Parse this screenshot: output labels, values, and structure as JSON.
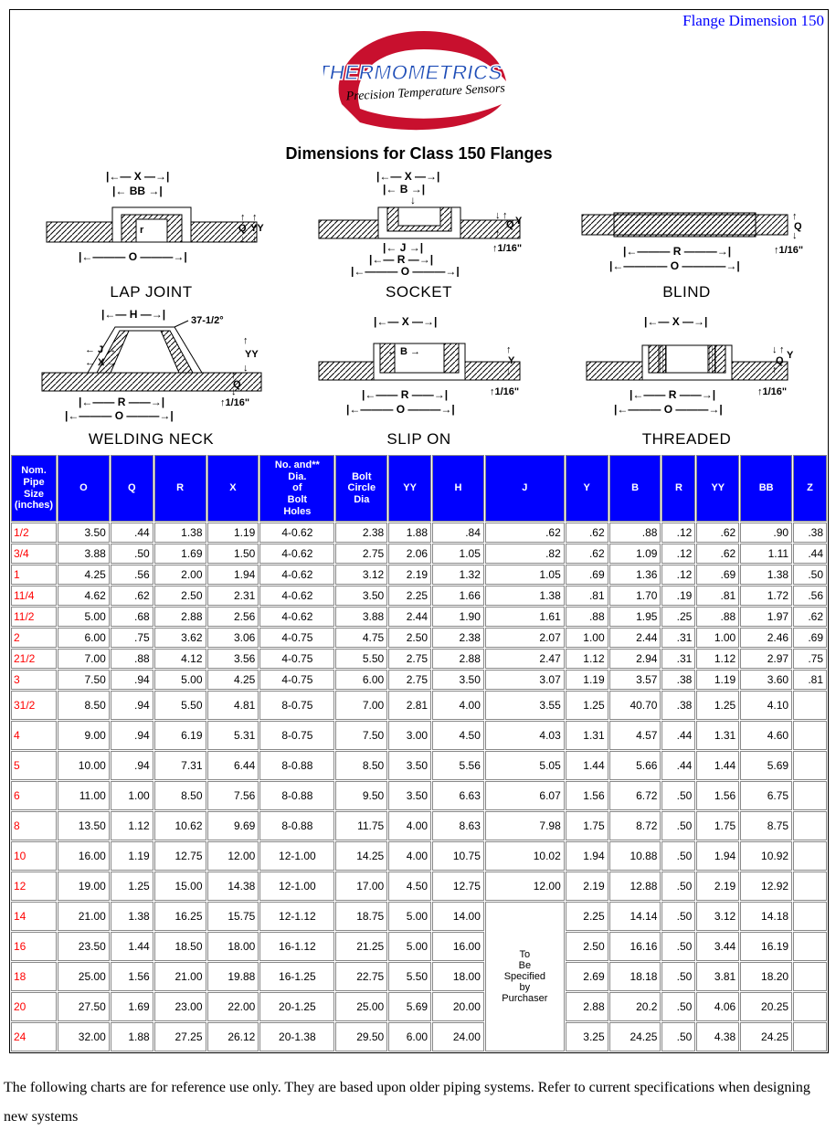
{
  "corner_label": "Flange Dimension 150",
  "logo": {
    "brand_main": "THERMOMETRICS",
    "brand_sub": "Precision Temperature Sensors",
    "swoosh_color": "#c8102e",
    "text_fill": "#1e4db7",
    "text_stroke": "#ffffff"
  },
  "title": "Dimensions for Class 150 Flanges",
  "diagrams": {
    "row1": [
      "LAP JOINT",
      "SOCKET",
      "BLIND"
    ],
    "row2": [
      "WELDING NECK",
      "SLIP ON",
      "THREADED"
    ],
    "diagram_colors": {
      "outline": "#000000",
      "hatch": "#000000",
      "dim_text": "#000000"
    },
    "angle_label": "37-1/2°",
    "frac_label": "1/16\""
  },
  "table": {
    "header_bg": "#0000ff",
    "header_fg": "#ffffff",
    "size_color": "#ff0000",
    "columns": [
      "Nom. Pipe Size (inches)",
      "O",
      "Q",
      "R",
      "X",
      "No. and** Dia. of Bolt Holes",
      "Bolt Circle Dia",
      "YY",
      "H",
      "J",
      "Y",
      "B",
      "R",
      "YY",
      "BB",
      "Z"
    ],
    "rows": [
      {
        "size": "1/2",
        "cells": [
          "3.50",
          ".44",
          "1.38",
          "1.19",
          "4-0.62",
          "2.38",
          "1.88",
          ".84",
          ".62",
          ".62",
          ".88",
          ".12",
          ".62",
          ".90",
          ".38"
        ]
      },
      {
        "size": "3/4",
        "cells": [
          "3.88",
          ".50",
          "1.69",
          "1.50",
          "4-0.62",
          "2.75",
          "2.06",
          "1.05",
          ".82",
          ".62",
          "1.09",
          ".12",
          ".62",
          "1.11",
          ".44"
        ]
      },
      {
        "size": "1",
        "cells": [
          "4.25",
          ".56",
          "2.00",
          "1.94",
          "4-0.62",
          "3.12",
          "2.19",
          "1.32",
          "1.05",
          ".69",
          "1.36",
          ".12",
          ".69",
          "1.38",
          ".50"
        ]
      },
      {
        "size": "11/4",
        "cells": [
          "4.62",
          ".62",
          "2.50",
          "2.31",
          "4-0.62",
          "3.50",
          "2.25",
          "1.66",
          "1.38",
          ".81",
          "1.70",
          ".19",
          ".81",
          "1.72",
          ".56"
        ]
      },
      {
        "size": "11/2",
        "cells": [
          "5.00",
          ".68",
          "2.88",
          "2.56",
          "4-0.62",
          "3.88",
          "2.44",
          "1.90",
          "1.61",
          ".88",
          "1.95",
          ".25",
          ".88",
          "1.97",
          ".62"
        ]
      },
      {
        "size": "2",
        "cells": [
          "6.00",
          ".75",
          "3.62",
          "3.06",
          "4-0.75",
          "4.75",
          "2.50",
          "2.38",
          "2.07",
          "1.00",
          "2.44",
          ".31",
          "1.00",
          "2.46",
          ".69"
        ]
      },
      {
        "size": "21/2",
        "cells": [
          "7.00",
          ".88",
          "4.12",
          "3.56",
          "4-0.75",
          "5.50",
          "2.75",
          "2.88",
          "2.47",
          "1.12",
          "2.94",
          ".31",
          "1.12",
          "2.97",
          ".75"
        ]
      },
      {
        "size": "3",
        "cells": [
          "7.50",
          ".94",
          "5.00",
          "4.25",
          "4-0.75",
          "6.00",
          "2.75",
          "3.50",
          "3.07",
          "1.19",
          "3.57",
          ".38",
          "1.19",
          "3.60",
          ".81"
        ]
      },
      {
        "size": "31/2",
        "tall": true,
        "cells": [
          "8.50",
          ".94",
          "5.50",
          "4.81",
          "8-0.75",
          "7.00",
          "2.81",
          "4.00",
          "3.55",
          "1.25",
          "40.70",
          ".38",
          "1.25",
          "4.10",
          ""
        ]
      },
      {
        "size": "4",
        "tall": true,
        "cells": [
          "9.00",
          ".94",
          "6.19",
          "5.31",
          "8-0.75",
          "7.50",
          "3.00",
          "4.50",
          "4.03",
          "1.31",
          "4.57",
          ".44",
          "1.31",
          "4.60",
          ""
        ]
      },
      {
        "size": "5",
        "tall": true,
        "cells": [
          "10.00",
          ".94",
          "7.31",
          "6.44",
          "8-0.88",
          "8.50",
          "3.50",
          "5.56",
          "5.05",
          "1.44",
          "5.66",
          ".44",
          "1.44",
          "5.69",
          ""
        ]
      },
      {
        "size": "6",
        "tall": true,
        "cells": [
          "11.00",
          "1.00",
          "8.50",
          "7.56",
          "8-0.88",
          "9.50",
          "3.50",
          "6.63",
          "6.07",
          "1.56",
          "6.72",
          ".50",
          "1.56",
          "6.75",
          ""
        ]
      },
      {
        "size": "8",
        "tall": true,
        "cells": [
          "13.50",
          "1.12",
          "10.62",
          "9.69",
          "8-0.88",
          "11.75",
          "4.00",
          "8.63",
          "7.98",
          "1.75",
          "8.72",
          ".50",
          "1.75",
          "8.75",
          ""
        ]
      },
      {
        "size": "10",
        "tall": true,
        "cells": [
          "16.00",
          "1.19",
          "12.75",
          "12.00",
          "12-1.00",
          "14.25",
          "4.00",
          "10.75",
          "10.02",
          "1.94",
          "10.88",
          ".50",
          "1.94",
          "10.92",
          ""
        ]
      },
      {
        "size": "12",
        "tall": true,
        "cells": [
          "19.00",
          "1.25",
          "15.00",
          "14.38",
          "12-1.00",
          "17.00",
          "4.50",
          "12.75",
          "12.00",
          "2.19",
          "12.88",
          ".50",
          "2.19",
          "12.92",
          ""
        ]
      },
      {
        "size": "14",
        "tall": true,
        "cells": [
          "21.00",
          "1.38",
          "16.25",
          "15.75",
          "12-1.12",
          "18.75",
          "5.00",
          "14.00",
          "",
          "2.25",
          "14.14",
          ".50",
          "3.12",
          "14.18",
          ""
        ],
        "spec_start": true
      },
      {
        "size": "16",
        "tall": true,
        "cells": [
          "23.50",
          "1.44",
          "18.50",
          "18.00",
          "16-1.12",
          "21.25",
          "5.00",
          "16.00",
          "",
          "2.50",
          "16.16",
          ".50",
          "3.44",
          "16.19",
          ""
        ]
      },
      {
        "size": "18",
        "tall": true,
        "cells": [
          "25.00",
          "1.56",
          "21.00",
          "19.88",
          "16-1.25",
          "22.75",
          "5.50",
          "18.00",
          "",
          "2.69",
          "18.18",
          ".50",
          "3.81",
          "18.20",
          ""
        ]
      },
      {
        "size": "20",
        "tall": true,
        "cells": [
          "27.50",
          "1.69",
          "23.00",
          "22.00",
          "20-1.25",
          "25.00",
          "5.69",
          "20.00",
          "",
          "2.88",
          "20.2",
          ".50",
          "4.06",
          "20.25",
          ""
        ]
      },
      {
        "size": "24",
        "tall": true,
        "cells": [
          "32.00",
          "1.88",
          "27.25",
          "26.12",
          "20-1.38",
          "29.50",
          "6.00",
          "24.00",
          "",
          "3.25",
          "24.25",
          ".50",
          "4.38",
          "24.25",
          ""
        ]
      }
    ],
    "spec_note": "To Be Specified by Purchaser"
  },
  "footer": "The following charts are for reference use only. They are based upon older piping systems.  Refer to current specifications when designing new systems"
}
